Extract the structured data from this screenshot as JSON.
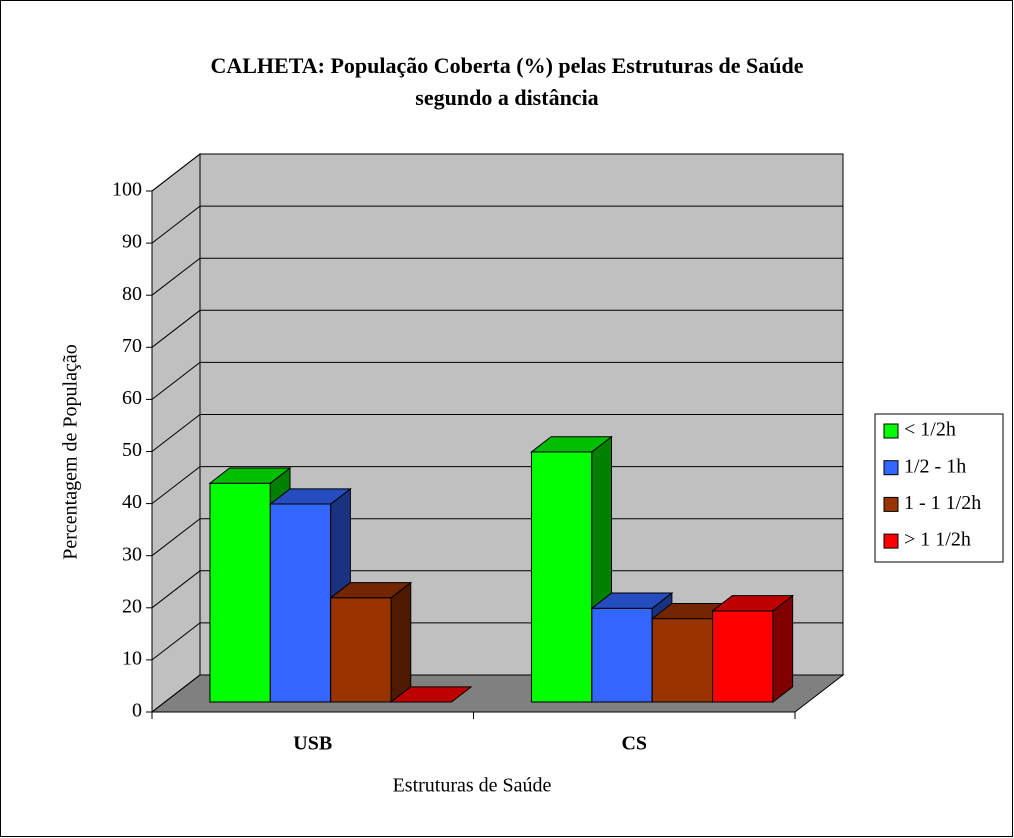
{
  "chart_data": {
    "type": "bar3d",
    "title": [
      "CALHETA: População Coberta (%) pelas Estruturas de Saúde",
      "segundo a distância"
    ],
    "x_label": "Estruturas de Saúde",
    "y_label": "Percentagem de População",
    "categories": [
      "USB",
      "CS"
    ],
    "series": [
      {
        "name": "< 1/2h",
        "color": "#00ff00",
        "values": [
          42,
          48
        ]
      },
      {
        "name": "1/2 - 1h",
        "color": "#3366ff",
        "values": [
          38,
          18
        ]
      },
      {
        "name": "1 - 1 1/2h",
        "color": "#993300",
        "values": [
          20,
          16
        ]
      },
      {
        "name": "> 1 1/2h",
        "color": "#ff0000",
        "values": [
          0,
          17.5
        ]
      }
    ],
    "ylim": [
      0,
      100
    ],
    "yticks": [
      0,
      10,
      20,
      30,
      40,
      50,
      60,
      70,
      80,
      90,
      100
    ],
    "grid": true,
    "legend": "right"
  }
}
